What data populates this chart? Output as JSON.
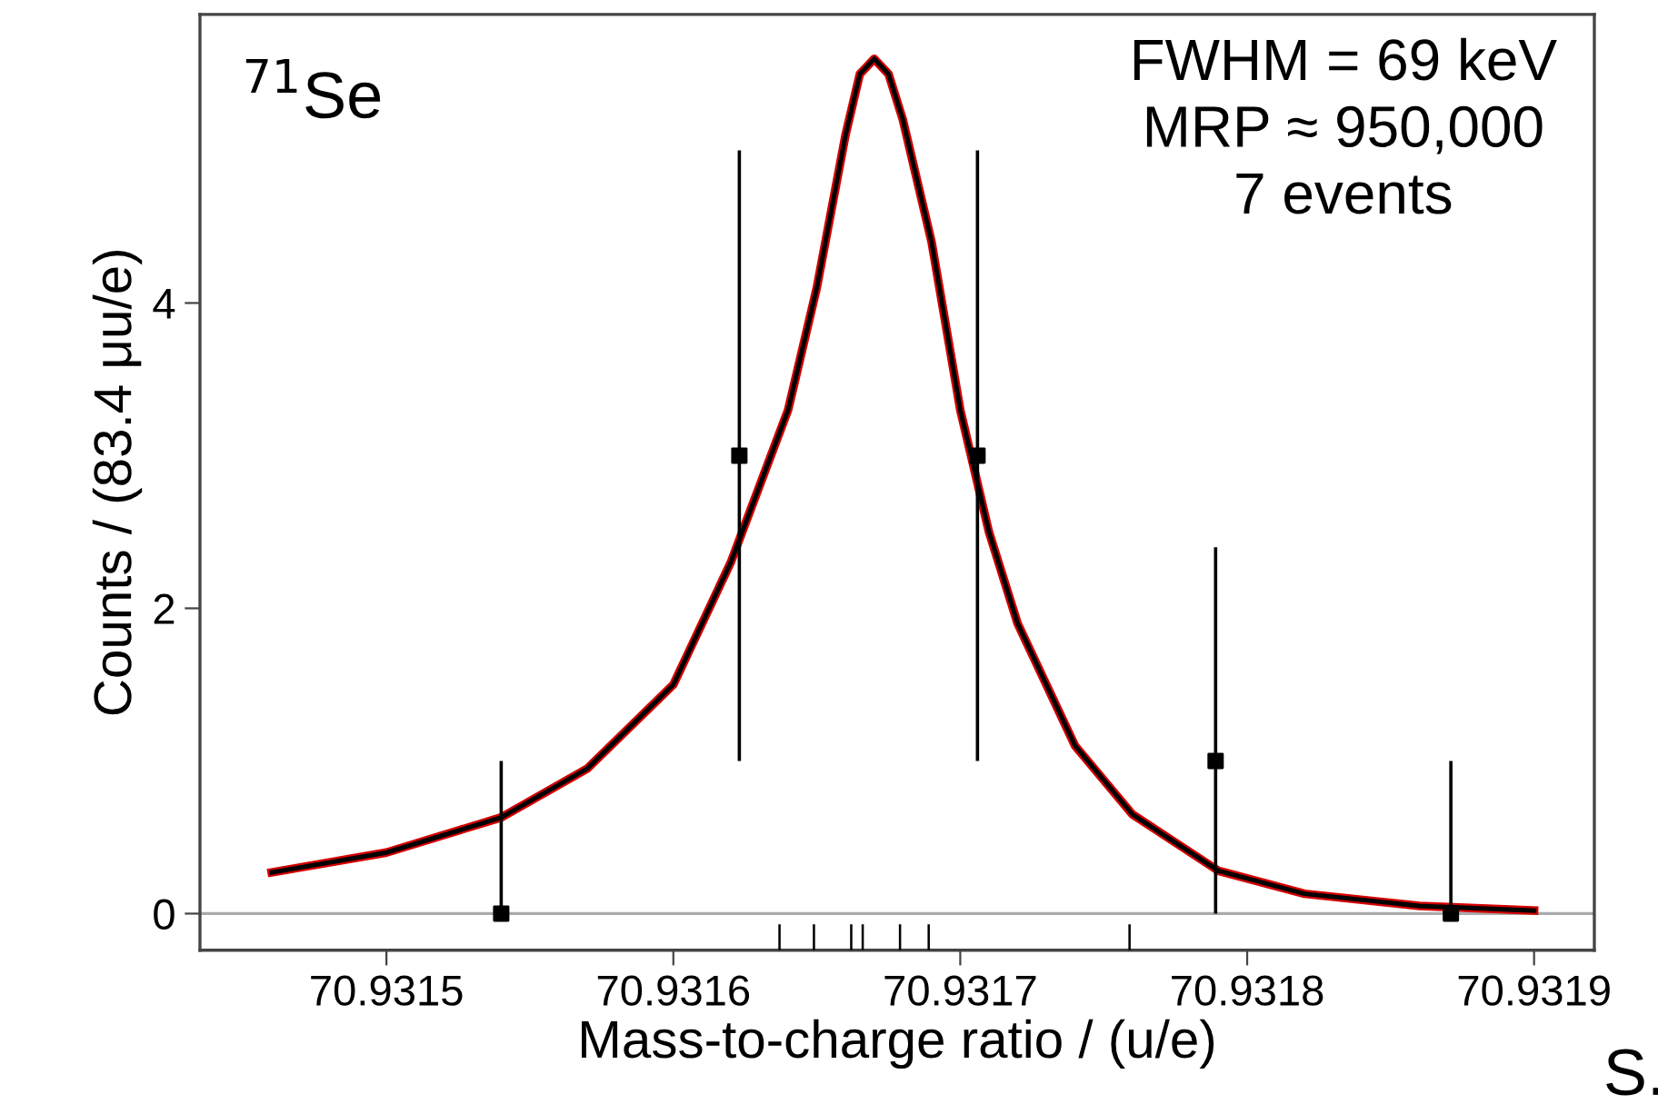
{
  "chart_data": {
    "type": "scatter",
    "xlabel": "Mass-to-charge ratio / (u/e)",
    "ylabel": "Counts / (83.4 μu/e)",
    "xlim": [
      70.931435,
      70.931921
    ],
    "ylim": [
      -0.24,
      5.89
    ],
    "xticks": [
      {
        "value": 70.9315,
        "label": "70.9315"
      },
      {
        "value": 70.9316,
        "label": "70.9316"
      },
      {
        "value": 70.9317,
        "label": "70.9317"
      },
      {
        "value": 70.9318,
        "label": "70.9318"
      },
      {
        "value": 70.9319,
        "label": "70.9319"
      }
    ],
    "yticks": [
      0,
      2,
      4
    ],
    "grid": false,
    "legend": false,
    "series": [
      {
        "type": "line",
        "color": "#d40000",
        "line_style": "solid",
        "marker": "none",
        "x": [
          70.93146,
          70.9315,
          70.93154,
          70.93157,
          70.9316,
          70.93162,
          70.93164,
          70.93165,
          70.931655,
          70.93166,
          70.931665,
          70.93167,
          70.931675,
          70.93168,
          70.931685,
          70.93169,
          70.9317,
          70.93171,
          70.93172,
          70.93174,
          70.93176,
          70.93179,
          70.93182,
          70.93186,
          70.9319
        ],
        "values": [
          0.27,
          0.4,
          0.63,
          0.95,
          1.5,
          2.3,
          3.3,
          4.1,
          4.6,
          5.1,
          5.5,
          5.6,
          5.5,
          5.2,
          4.8,
          4.4,
          3.3,
          2.5,
          1.9,
          1.1,
          0.65,
          0.28,
          0.13,
          0.05,
          0.02
        ]
      },
      {
        "color": "#000000",
        "marker": "square",
        "x": [
          70.93154,
          70.931623,
          70.931706,
          70.931789,
          70.931871
        ],
        "values": [
          0,
          3,
          3,
          1,
          0
        ],
        "errors": [
          [
            0,
            1
          ],
          [
            1,
            5
          ],
          [
            1,
            5
          ],
          [
            0,
            2.4
          ],
          [
            0,
            1
          ]
        ]
      },
      {
        "type": "bar",
        "color": "#000000",
        "x": [
          70.931637,
          70.931649,
          70.931662,
          70.931666,
          70.931679,
          70.931689,
          70.931759
        ],
        "base": [
          -0.24,
          -0.24,
          -0.24,
          -0.24,
          -0.24,
          -0.24,
          -0.24
        ],
        "values": [
          0.17,
          0.17,
          0.17,
          0.17,
          0.17,
          0.17,
          0.17
        ]
      }
    ],
    "ref_lines": [
      {
        "axis": "y",
        "value": 0,
        "label": null,
        "color": "#aaaaaa"
      }
    ],
    "annotations": [
      "$^{71}$Se",
      "FWHM = 69 keV\nMRP ≈ 950,000\n7 events",
      "S."
    ]
  }
}
